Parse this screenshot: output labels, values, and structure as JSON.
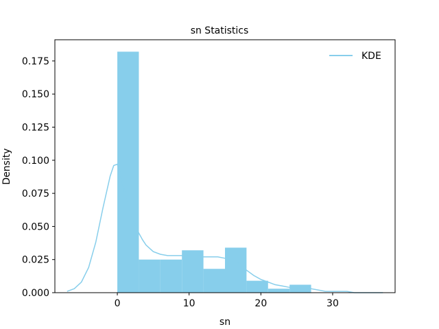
{
  "chart_data": {
    "type": "bar",
    "title": "sn Statistics",
    "xlabel": "sn",
    "ylabel": "Density",
    "xlim": [
      -8.7,
      38.7
    ],
    "ylim": [
      0,
      0.191
    ],
    "xticks": [
      {
        "value": 0,
        "label": "0"
      },
      {
        "value": 10,
        "label": "10"
      },
      {
        "value": 20,
        "label": "20"
      },
      {
        "value": 30,
        "label": "30"
      }
    ],
    "yticks": [
      {
        "value": 0.0,
        "label": "0.000"
      },
      {
        "value": 0.025,
        "label": "0.025"
      },
      {
        "value": 0.05,
        "label": "0.050"
      },
      {
        "value": 0.075,
        "label": "0.075"
      },
      {
        "value": 0.1,
        "label": "0.100"
      },
      {
        "value": 0.125,
        "label": "0.125"
      },
      {
        "value": 0.15,
        "label": "0.150"
      },
      {
        "value": 0.175,
        "label": "0.175"
      }
    ],
    "grid": false,
    "legend": {
      "position": "top-right",
      "entries": [
        "KDE"
      ]
    },
    "histogram": {
      "color": "#87ceeb",
      "bins": [
        {
          "x0": 0.0,
          "x1": 3.0,
          "density": 0.182
        },
        {
          "x0": 3.0,
          "x1": 6.0,
          "density": 0.025
        },
        {
          "x0": 6.0,
          "x1": 9.0,
          "density": 0.025
        },
        {
          "x0": 9.0,
          "x1": 12.0,
          "density": 0.032
        },
        {
          "x0": 12.0,
          "x1": 15.0,
          "density": 0.018
        },
        {
          "x0": 15.0,
          "x1": 18.0,
          "density": 0.034
        },
        {
          "x0": 18.0,
          "x1": 21.0,
          "density": 0.009
        },
        {
          "x0": 21.0,
          "x1": 24.0,
          "density": 0.003
        },
        {
          "x0": 24.0,
          "x1": 27.0,
          "density": 0.006
        }
      ]
    },
    "series": [
      {
        "name": "KDE",
        "color": "#87ceeb",
        "x": [
          -7,
          -6,
          -5,
          -4,
          -3,
          -2,
          -1,
          -0.5,
          0,
          0.5,
          1,
          1.5,
          2,
          2.5,
          3,
          3.5,
          4,
          5,
          6,
          7,
          8,
          9,
          10,
          11,
          12,
          13,
          14,
          15,
          16,
          17,
          18,
          19,
          20,
          21,
          22,
          23,
          24,
          25,
          26,
          27,
          28,
          29,
          30,
          31,
          32,
          33,
          34,
          35,
          36,
          37
        ],
        "y": [
          0.001,
          0.003,
          0.008,
          0.019,
          0.038,
          0.064,
          0.088,
          0.096,
          0.097,
          0.088,
          0.076,
          0.066,
          0.058,
          0.051,
          0.045,
          0.04,
          0.036,
          0.031,
          0.029,
          0.028,
          0.028,
          0.028,
          0.029,
          0.028,
          0.027,
          0.027,
          0.027,
          0.026,
          0.026,
          0.022,
          0.017,
          0.013,
          0.01,
          0.008,
          0.006,
          0.005,
          0.004,
          0.004,
          0.003,
          0.003,
          0.002,
          0.001,
          0.001,
          0.001,
          0.001,
          0.0,
          0.0,
          0.0,
          0.0,
          0.0
        ]
      }
    ]
  }
}
